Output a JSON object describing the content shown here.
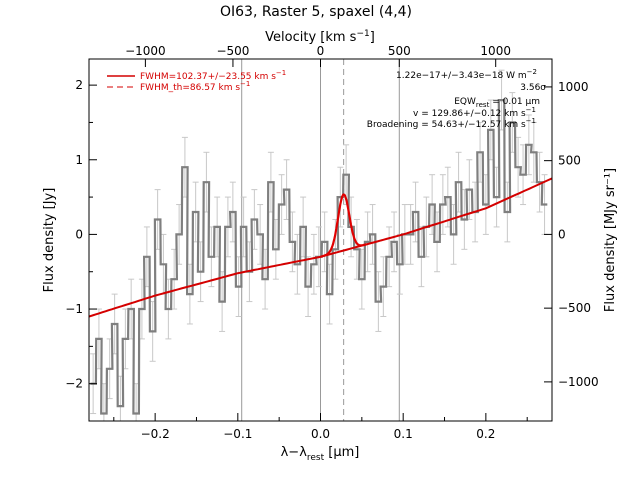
{
  "chart_data": {
    "type": "line",
    "title": "OI63, Raster 5, spaxel (4,4)",
    "xlabel_main": "λ−λ",
    "xlabel_sub": "rest",
    "xlabel_unit": " [μm]",
    "ylabel_left": "Flux density [Jy]",
    "ylabel_right": "Flux density [MJy sr⁻¹]",
    "top_axis_label_main": "Velocity [km s",
    "top_axis_label_sup": "−1",
    "top_axis_label_end": "]",
    "xlim": [
      -0.28,
      0.28
    ],
    "ylim": [
      -2.5,
      2.35
    ],
    "x_ticks": [
      -0.2,
      -0.1,
      0.0,
      0.1,
      0.2
    ],
    "x_tick_labels": [
      "−0.2",
      "−0.1",
      "0.0",
      "0.1",
      "0.2"
    ],
    "y_ticks": [
      -2,
      -1,
      0,
      1,
      2
    ],
    "y_tick_labels": [
      "−2",
      "−1",
      "0",
      "1",
      "2"
    ],
    "top_ticks_x": [
      -0.2118,
      -0.1059,
      0.0,
      0.0953,
      0.2119
    ],
    "top_tick_labels": [
      "−1000",
      "−500",
      "0",
      "500",
      "1000"
    ],
    "right_ticks_y": [
      -1.976,
      -0.988,
      0.0,
      0.988,
      1.976
    ],
    "right_tick_labels": [
      "−1000",
      "−500",
      "0",
      "500",
      "1000"
    ],
    "vertical_lines_x": [
      -0.0953,
      0.0,
      0.0953
    ],
    "dashed_line_x": 0.028,
    "series": [
      {
        "name": "spectrum",
        "style": "histogram-with-errorbars",
        "color": "#7f7f7f",
        "x": [
          -0.275,
          -0.268,
          -0.262,
          -0.255,
          -0.249,
          -0.242,
          -0.236,
          -0.229,
          -0.223,
          -0.216,
          -0.21,
          -0.203,
          -0.197,
          -0.19,
          -0.184,
          -0.177,
          -0.171,
          -0.164,
          -0.158,
          -0.151,
          -0.145,
          -0.138,
          -0.132,
          -0.125,
          -0.119,
          -0.112,
          -0.106,
          -0.099,
          -0.093,
          -0.086,
          -0.08,
          -0.073,
          -0.067,
          -0.06,
          -0.054,
          -0.047,
          -0.041,
          -0.034,
          -0.028,
          -0.021,
          -0.015,
          -0.008,
          -0.002,
          0.005,
          0.011,
          0.018,
          0.024,
          0.031,
          0.037,
          0.044,
          0.05,
          0.057,
          0.063,
          0.07,
          0.076,
          0.083,
          0.089,
          0.096,
          0.102,
          0.109,
          0.115,
          0.122,
          0.128,
          0.135,
          0.141,
          0.148,
          0.154,
          0.161,
          0.167,
          0.174,
          0.18,
          0.187,
          0.193,
          0.2,
          0.206,
          0.213,
          0.219,
          0.226,
          0.232,
          0.239,
          0.245,
          0.252,
          0.258,
          0.265,
          0.271
        ],
        "y": [
          -2.0,
          -1.4,
          -2.4,
          -1.8,
          -1.2,
          -2.3,
          -1.4,
          -1.0,
          -2.4,
          -1.0,
          -0.3,
          -1.3,
          0.2,
          -0.4,
          -1.0,
          -0.6,
          0.0,
          0.9,
          -0.8,
          0.3,
          -0.5,
          0.7,
          -0.3,
          0.1,
          -0.9,
          0.1,
          0.3,
          -0.7,
          0.1,
          -0.5,
          0.2,
          0.0,
          -0.6,
          0.7,
          -0.2,
          0.4,
          0.6,
          -0.1,
          -0.4,
          0.1,
          -0.7,
          -0.4,
          -0.3,
          -0.1,
          -0.8,
          -0.2,
          0.5,
          0.8,
          0.1,
          -0.2,
          -0.6,
          -0.1,
          0.0,
          -0.9,
          -0.7,
          -0.3,
          -0.1,
          -0.4,
          0.0,
          0.0,
          0.3,
          -0.3,
          0.1,
          0.4,
          -0.1,
          0.4,
          0.5,
          0.0,
          0.7,
          0.2,
          0.6,
          0.3,
          1.1,
          0.4,
          1.4,
          0.5,
          1.8,
          0.3,
          1.5,
          0.9,
          0.8,
          1.2,
          1.1,
          0.7,
          0.4
        ],
        "yerr": [
          0.4,
          0.4,
          0.4,
          0.4,
          0.4,
          0.4,
          0.4,
          0.4,
          0.4,
          0.4,
          0.4,
          0.4,
          0.4,
          0.4,
          0.4,
          0.4,
          0.4,
          0.4,
          0.4,
          0.4,
          0.4,
          0.4,
          0.4,
          0.4,
          0.4,
          0.4,
          0.4,
          0.4,
          0.4,
          0.4,
          0.4,
          0.4,
          0.4,
          0.4,
          0.4,
          0.4,
          0.4,
          0.4,
          0.4,
          0.4,
          0.4,
          0.4,
          0.4,
          0.4,
          0.4,
          0.4,
          0.4,
          0.4,
          0.4,
          0.4,
          0.4,
          0.4,
          0.4,
          0.4,
          0.4,
          0.4,
          0.4,
          0.4,
          0.4,
          0.4,
          0.4,
          0.4,
          0.4,
          0.4,
          0.4,
          0.4,
          0.4,
          0.4,
          0.4,
          0.4,
          0.4,
          0.4,
          0.4,
          0.4,
          0.4,
          0.4,
          0.4,
          0.4,
          0.4,
          0.4,
          0.4,
          0.4,
          0.4,
          0.4,
          0.4
        ]
      },
      {
        "name": "continuum",
        "style": "line",
        "color": "#d40000",
        "x": [
          -0.28,
          -0.2,
          -0.1,
          0.0,
          0.1,
          0.2,
          0.28
        ],
        "y": [
          -1.1,
          -0.82,
          -0.52,
          -0.3,
          0.0,
          0.35,
          0.75
        ]
      },
      {
        "name": "line-fit",
        "style": "gaussian",
        "color": "#e00000",
        "center": 0.028,
        "amplitude": 0.75,
        "sigma": 0.0068,
        "range": [
          0.0,
          0.056
        ]
      }
    ],
    "legend": {
      "placement": "top-left",
      "entries": [
        {
          "label": "FWHM=102.37+/−23.55 km s",
          "sup": "−1",
          "style": "solid",
          "color": "#d40000"
        },
        {
          "label": "FWHM_th=86.57 km s",
          "sup": "−1",
          "style": "dashed",
          "color": "#d40000"
        }
      ]
    },
    "annotations": [
      {
        "main": "1.22e−17+/−3.43e−18 W m",
        "sup": "−2"
      },
      {
        "main": "3.56σ"
      },
      {
        "main": "EQW",
        "sub": "rest",
        "end": " = 0.01 μm"
      },
      {
        "main": "v = 129.86+/−0.12 km s",
        "sup": "−1"
      },
      {
        "main": "Broadening = 54.63+/−12.57 km s",
        "sup": "−1"
      }
    ]
  }
}
